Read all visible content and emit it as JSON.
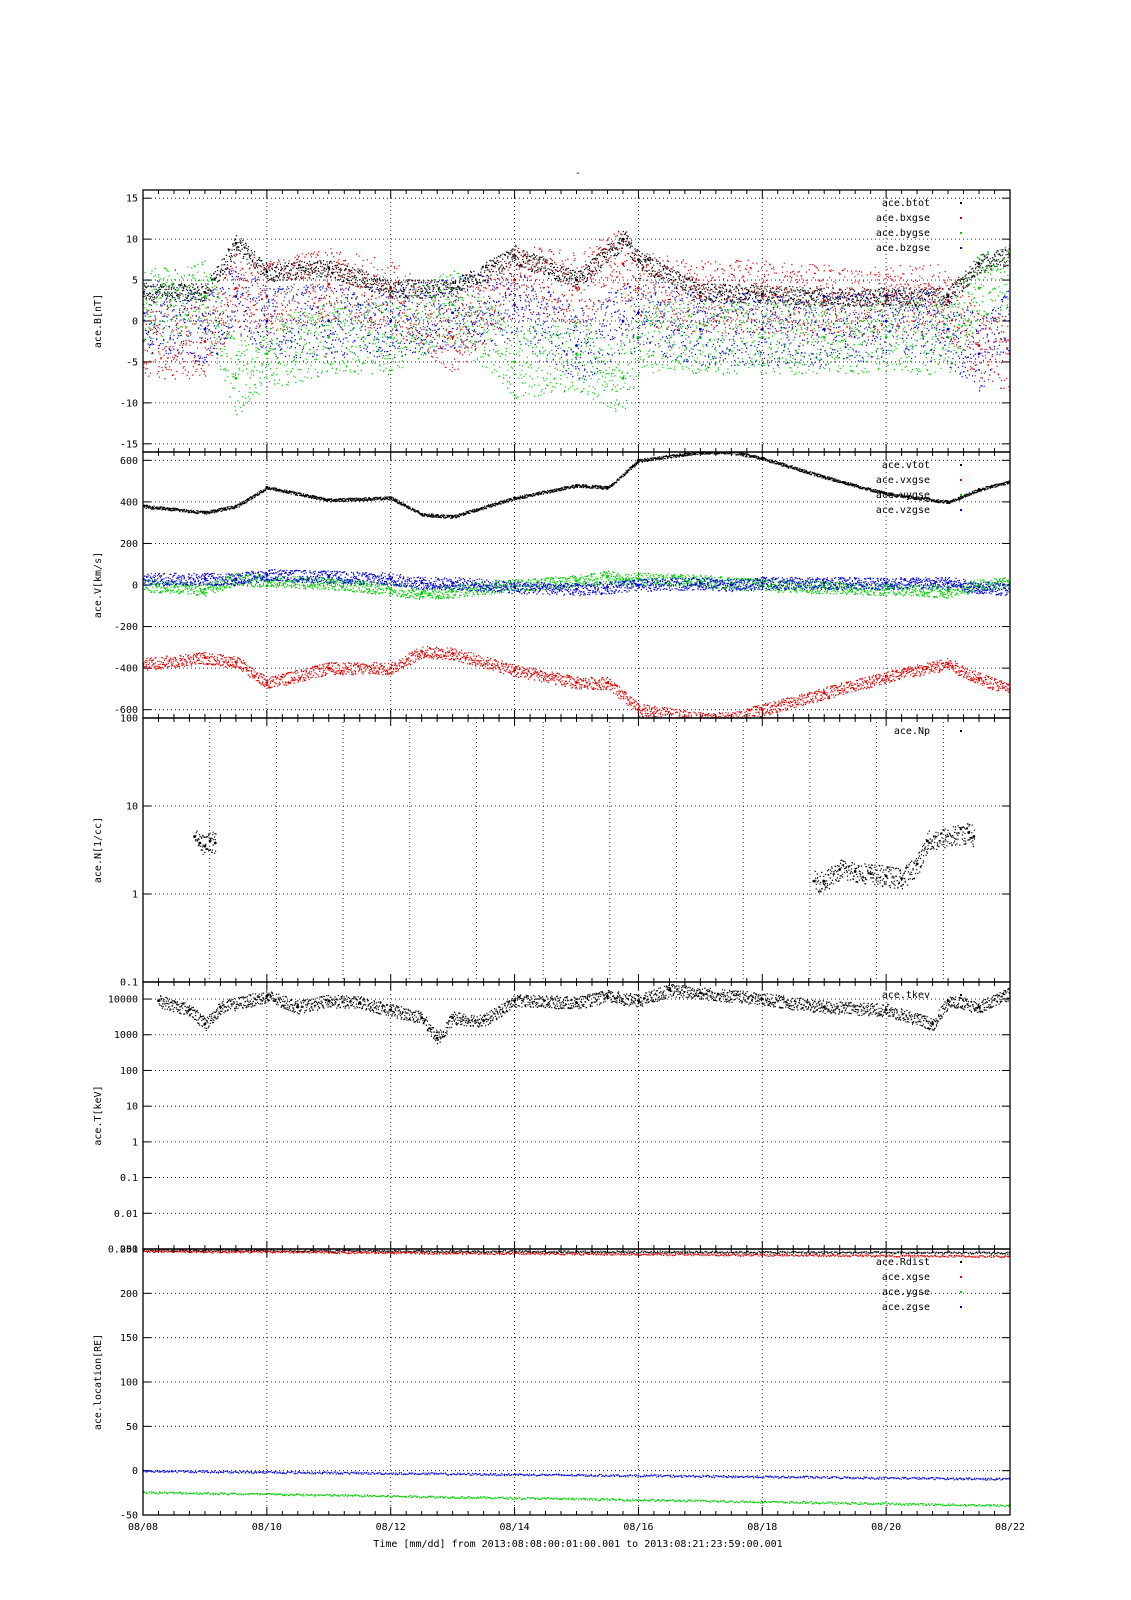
{
  "figure": {
    "title": "-",
    "time_axis": {
      "tick_labels": [
        "08/08",
        "08/10",
        "08/12",
        "08/14",
        "08/16",
        "08/18",
        "08/20",
        "08/22"
      ],
      "label": "Time [mm/dd]  from 2013:08:08:00:01:00.001  to  2013:08:21:23:59:00.001",
      "range_days": [
        "2013-08-08",
        "2013-08-22"
      ]
    }
  },
  "colors": {
    "black": "#000000",
    "red": "#e00000",
    "green": "#00cc00",
    "blue": "#0000e0"
  },
  "chart_data": [
    {
      "type": "scatter",
      "ylabel": "ace.B[nT]",
      "ylim": [
        -16,
        16
      ],
      "yticks": [
        -15,
        -10,
        -5,
        0,
        5,
        10,
        15
      ],
      "ytick_labels": [
        "-15",
        "-10",
        "-5",
        "0",
        "5",
        "10",
        "15"
      ],
      "grid": true,
      "legend_position": "top-right",
      "x": [
        "08/08",
        "08/09",
        "08/09 12h",
        "08/10",
        "08/11",
        "08/12",
        "08/13",
        "08/14",
        "08/15",
        "08/15 18h",
        "08/16",
        "08/17",
        "08/18",
        "08/19",
        "08/20",
        "08/21",
        "08/21 12h",
        "08/22"
      ],
      "series": [
        {
          "name": "ace.btot",
          "color": "black",
          "values": [
            3.5,
            3.5,
            9.5,
            6,
            6.5,
            4,
            4,
            8,
            5,
            10,
            7.5,
            3.5,
            3.3,
            3,
            3,
            3,
            7,
            8
          ]
        },
        {
          "name": "ace.bxgse",
          "color": "red",
          "values": [
            -2.5,
            -2.5,
            4,
            3,
            4.5,
            3,
            -2,
            5,
            4,
            7,
            4,
            3,
            3,
            2.5,
            2.5,
            2.5,
            -3,
            -4
          ]
        },
        {
          "name": "ace.bygse",
          "color": "green",
          "values": [
            2,
            3,
            -7,
            -4,
            -2,
            -2,
            2,
            -5,
            -4,
            -7,
            -2,
            -2,
            -2,
            -2,
            -2,
            -2,
            4,
            5
          ]
        },
        {
          "name": "ace.bzgse",
          "color": "blue",
          "values": [
            1,
            -1,
            3,
            0,
            0,
            0,
            1,
            2,
            -3,
            0,
            1,
            -1,
            -1,
            -1,
            0,
            -1,
            -4,
            0
          ]
        }
      ]
    },
    {
      "type": "scatter",
      "ylabel": "ace.V[km/s]",
      "ylim": [
        -640,
        640
      ],
      "yticks": [
        -600,
        -400,
        -200,
        0,
        200,
        400,
        600
      ],
      "ytick_labels": [
        "-600",
        "-400",
        "-200",
        "0",
        "200",
        "400",
        "600"
      ],
      "grid": true,
      "legend_position": "top-right",
      "x": [
        "08/08",
        "08/09",
        "08/09 12h",
        "08/10",
        "08/11",
        "08/12",
        "08/12 12h",
        "08/13",
        "08/14",
        "08/15",
        "08/15 12h",
        "08/16",
        "08/17",
        "08/17 12h",
        "08/18",
        "08/19",
        "08/20",
        "08/21",
        "08/21 12h",
        "08/22"
      ],
      "series": [
        {
          "name": "ace.vtot",
          "color": "black",
          "values": [
            380,
            350,
            380,
            470,
            410,
            420,
            340,
            330,
            420,
            480,
            470,
            600,
            640,
            640,
            610,
            520,
            440,
            400,
            460,
            500
          ]
        },
        {
          "name": "ace.vxgse",
          "color": "red",
          "values": [
            -380,
            -350,
            -370,
            -470,
            -400,
            -400,
            -320,
            -330,
            -410,
            -470,
            -470,
            -600,
            -640,
            -640,
            -600,
            -520,
            -440,
            -380,
            -450,
            -500
          ]
        },
        {
          "name": "ace.vygse",
          "color": "green",
          "values": [
            0,
            -20,
            30,
            20,
            10,
            -20,
            -40,
            -30,
            0,
            20,
            40,
            30,
            20,
            10,
            0,
            -10,
            -20,
            -30,
            0,
            10
          ]
        },
        {
          "name": "ace.vzgse",
          "color": "blue",
          "values": [
            30,
            30,
            30,
            50,
            40,
            30,
            10,
            10,
            -10,
            -20,
            -10,
            0,
            10,
            0,
            10,
            10,
            10,
            10,
            -10,
            -20
          ]
        }
      ]
    },
    {
      "type": "scatter",
      "ylabel": "ace.N[1/cc]",
      "yscale": "log",
      "ylim": [
        0.1,
        100
      ],
      "yticks": [
        0.1,
        1,
        10,
        100
      ],
      "ytick_labels": [
        "0.1",
        "1",
        "10",
        "100"
      ],
      "grid": true,
      "legend_position": "top-right",
      "series": [
        {
          "name": "ace.Np",
          "color": "black",
          "x": [
            "08/08 20h",
            "08/08 22h",
            "08/09",
            "08/09 02h",
            "08/09 04h",
            "08/18 20h",
            "08/19",
            "08/19 06h",
            "08/19 12h",
            "08/19 18h",
            "08/20",
            "08/20 06h",
            "08/20 12h",
            "08/20 16h",
            "08/21 08h",
            "08/21 10h"
          ],
          "values": [
            4.5,
            3.8,
            3.5,
            4,
            3.8,
            1.4,
            1.4,
            1.9,
            1.8,
            1.7,
            1.6,
            1.5,
            2.2,
            4,
            5,
            4.5
          ]
        }
      ]
    },
    {
      "type": "scatter",
      "ylabel": "ace.T[keV]",
      "yscale": "log",
      "ylim": [
        0.001,
        30000
      ],
      "yticks": [
        0.001,
        0.01,
        0.1,
        1,
        10,
        100,
        1000,
        10000
      ],
      "ytick_labels": [
        "0.001",
        "0.01",
        "0.1",
        "1",
        "10",
        "100",
        "1000",
        "10000"
      ],
      "grid": true,
      "legend_position": "top-right",
      "series": [
        {
          "name": "ace.tkev",
          "color": "black",
          "x": [
            "08/08 06h",
            "08/08 18h",
            "08/09",
            "08/09 06h",
            "08/10",
            "08/10 12h",
            "08/11",
            "08/11 12h",
            "08/12",
            "08/12 12h",
            "08/12 18h",
            "08/13",
            "08/13 12h",
            "08/14",
            "08/15",
            "08/15 12h",
            "08/16",
            "08/16 12h",
            "08/17",
            "08/18",
            "08/19",
            "08/20",
            "08/20 18h",
            "08/21",
            "08/21 12h",
            "08/22"
          ],
          "values": [
            9000,
            5000,
            2000,
            6000,
            12000,
            6000,
            9000,
            8000,
            5000,
            3000,
            800,
            3000,
            2500,
            9000,
            8000,
            12000,
            9000,
            18000,
            15000,
            10000,
            6000,
            5000,
            2000,
            9000,
            6000,
            15000
          ]
        }
      ]
    },
    {
      "type": "scatter",
      "ylabel": "ace.location[RE]",
      "ylim": [
        -50,
        250
      ],
      "yticks": [
        -50,
        0,
        50,
        100,
        150,
        200,
        250
      ],
      "ytick_labels": [
        "-50",
        "0",
        "50",
        "100",
        "150",
        "200",
        "250"
      ],
      "grid": true,
      "legend_position": "top-right",
      "x": [
        "08/08",
        "08/22"
      ],
      "series": [
        {
          "name": "ace.Rdist",
          "color": "black",
          "values": [
            249,
            246
          ]
        },
        {
          "name": "ace.xgse",
          "color": "red",
          "values": [
            248,
            242
          ]
        },
        {
          "name": "ace.ygse",
          "color": "green",
          "values": [
            -24,
            -39
          ]
        },
        {
          "name": "ace.zgse",
          "color": "blue",
          "values": [
            0,
            -9
          ]
        }
      ]
    }
  ]
}
